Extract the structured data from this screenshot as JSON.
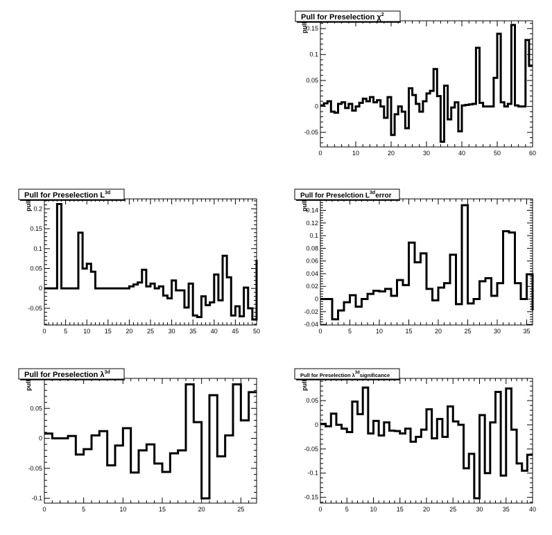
{
  "chart_data": [
    {
      "type": "line",
      "title": "Pull for Preselection χ",
      "title_sup": "2",
      "ylabel": "pull",
      "xlim": [
        0,
        60
      ],
      "ylim": [
        -0.078,
        0.165
      ],
      "xticks": [
        0,
        10,
        20,
        30,
        40,
        50,
        60
      ],
      "yticks": [
        -0.05,
        0,
        0.05,
        0.1,
        0.15
      ],
      "ytick_labels": [
        "-0.05",
        "0",
        "0.05",
        "0.1",
        "0.15"
      ],
      "bin_width": 1,
      "values": [
        0.002,
        0.006,
        0.01,
        -0.01,
        -0.012,
        0.005,
        0.008,
        -0.003,
        0.005,
        -0.008,
        0.0,
        0.007,
        0.015,
        0.01,
        0.018,
        0.008,
        0.012,
        0.0,
        -0.022,
        0.018,
        -0.055,
        -0.015,
        0.0,
        -0.01,
        -0.042,
        0.035,
        0.022,
        0.005,
        -0.01,
        0.01,
        0.025,
        0.03,
        0.072,
        0.02,
        -0.068,
        0.04,
        -0.025,
        -0.002,
        0.008,
        -0.048,
        0.002,
        0.003,
        0.004,
        0.005,
        0.113,
        0.007,
        0.0,
        0.0,
        0.0,
        0.055,
        0.14,
        0.008,
        0.0,
        0.005,
        0.157,
        0.002,
        0.0,
        0.0,
        0.128,
        0.078
      ]
    },
    {
      "type": "line",
      "title": "Pull for Preselection L",
      "title_sup": "3d",
      "ylabel": "pull",
      "xlim": [
        0,
        50
      ],
      "ylim": [
        -0.092,
        0.225
      ],
      "xticks": [
        0,
        5,
        10,
        15,
        20,
        25,
        30,
        35,
        40,
        45,
        50
      ],
      "yticks": [
        -0.05,
        0,
        0.05,
        0.1,
        0.15,
        0.2
      ],
      "ytick_labels": [
        "-0.05",
        "0",
        "0.05",
        "0.1",
        "0.15",
        "0.2"
      ],
      "bin_width": 1,
      "values": [
        0.0,
        0.0,
        0.0,
        0.212,
        0.0,
        0.0,
        0.0,
        0.0,
        0.14,
        0.05,
        0.062,
        0.042,
        0.0,
        0.0,
        0.0,
        0.0,
        0.0,
        0.0,
        0.0,
        0.0,
        0.005,
        0.01,
        0.015,
        0.047,
        0.005,
        0.012,
        0.0,
        0.005,
        -0.018,
        -0.025,
        0.02,
        -0.005,
        -0.005,
        -0.048,
        0.012,
        -0.068,
        -0.072,
        -0.02,
        -0.042,
        -0.035,
        0.035,
        -0.03,
        0.082,
        0.028,
        -0.068,
        -0.045,
        -0.07,
        0.002,
        -0.05,
        -0.078,
        0.072
      ]
    },
    {
      "type": "line",
      "title": "Pull for Preselction L",
      "title_sup": "3d",
      "title_suffix": "error",
      "ylabel": "pull",
      "xlim": [
        0,
        36
      ],
      "ylim": [
        -0.041,
        0.158
      ],
      "xticks": [
        0,
        5,
        10,
        15,
        20,
        25,
        30,
        35
      ],
      "yticks": [
        -0.04,
        -0.02,
        0,
        0.02,
        0.04,
        0.06,
        0.08,
        0.1,
        0.12,
        0.14
      ],
      "ytick_labels": [
        "-0.04",
        "-0.02",
        "0",
        "0.02",
        "0.04",
        "0.06",
        "0.08",
        "0.1",
        "0.12",
        "0.14"
      ],
      "bin_width": 1,
      "values": [
        0.0,
        0.0,
        -0.032,
        -0.018,
        -0.005,
        0.006,
        -0.012,
        0.0,
        0.008,
        0.013,
        0.012,
        0.016,
        0.005,
        0.03,
        0.022,
        0.089,
        0.058,
        0.072,
        0.016,
        -0.002,
        0.018,
        0.025,
        0.07,
        -0.008,
        0.148,
        -0.007,
        0.0,
        0.028,
        0.033,
        0.005,
        0.025,
        0.107,
        0.105,
        0.025,
        0.0,
        0.039,
        -0.018
      ]
    },
    {
      "type": "line",
      "title": "Pull for Preselection λ",
      "title_sup": "3d",
      "ylabel": "pull",
      "xlim": [
        0,
        27
      ],
      "ylim": [
        -0.108,
        0.1
      ],
      "xticks": [
        0,
        5,
        10,
        15,
        20,
        25
      ],
      "yticks": [
        -0.1,
        -0.05,
        0,
        0.05
      ],
      "ytick_labels": [
        "-0.1",
        "-0.05",
        "0",
        "0.05"
      ],
      "bin_width": 1,
      "values": [
        0.008,
        0.0,
        0.0,
        0.004,
        -0.027,
        -0.018,
        0.005,
        0.012,
        -0.045,
        -0.012,
        0.017,
        -0.057,
        -0.02,
        -0.01,
        -0.042,
        -0.056,
        -0.025,
        -0.02,
        0.09,
        0.027,
        -0.1,
        0.072,
        -0.03,
        0.005,
        0.09,
        0.03,
        0.077
      ]
    },
    {
      "type": "line",
      "title": "Pull for Preselection λ",
      "title_sup": "3d",
      "title_suffix": "significance",
      "ylabel": "pull",
      "xlim": [
        0,
        40
      ],
      "ylim": [
        -0.162,
        0.096
      ],
      "xticks": [
        0,
        5,
        10,
        15,
        20,
        25,
        30,
        35,
        40
      ],
      "yticks": [
        -0.15,
        -0.1,
        -0.05,
        0,
        0.05
      ],
      "ytick_labels": [
        "-0.15",
        "-0.1",
        "-0.05",
        "0",
        "0.05"
      ],
      "bin_width": 1,
      "values": [
        0.002,
        -0.003,
        0.023,
        0.0,
        -0.008,
        -0.015,
        0.048,
        0.022,
        0.077,
        -0.018,
        0.008,
        -0.022,
        0.005,
        -0.012,
        -0.013,
        -0.018,
        -0.008,
        -0.035,
        -0.025,
        -0.01,
        0.032,
        -0.028,
        0.012,
        -0.025,
        0.038,
        0.007,
        0.0,
        -0.09,
        -0.06,
        -0.152,
        0.02,
        -0.1,
        0.005,
        0.068,
        -0.105,
        0.075,
        -0.01,
        -0.08,
        -0.095,
        -0.062
      ]
    }
  ]
}
